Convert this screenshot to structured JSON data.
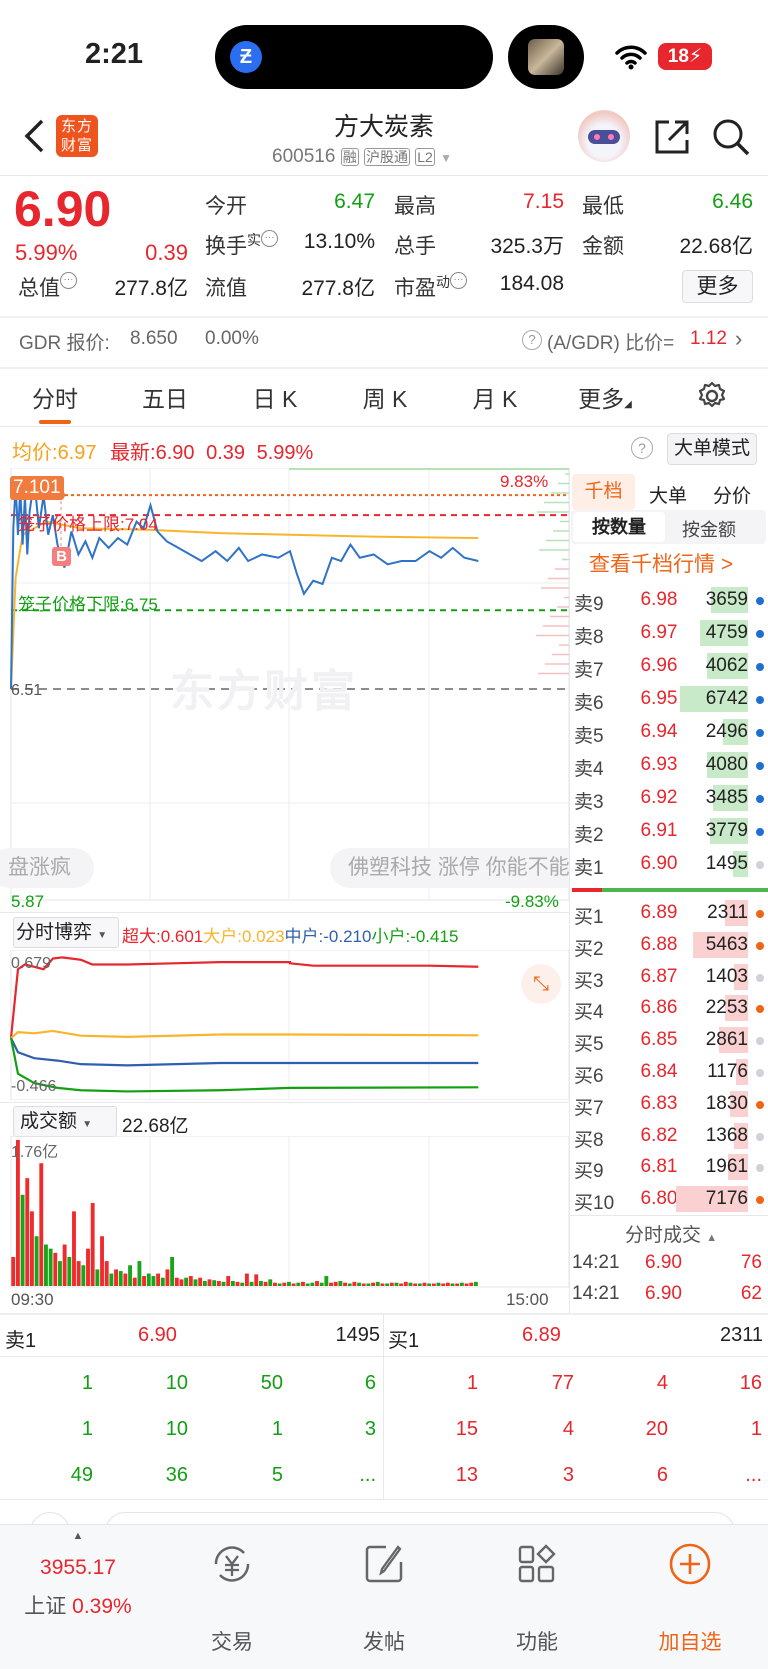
{
  "status_bar": {
    "time": "2:21",
    "battery": "18"
  },
  "header": {
    "logo": "东方财富",
    "title": "方大炭素",
    "code": "600516",
    "badges": [
      "融",
      "沪股通",
      "L2"
    ]
  },
  "quote": {
    "price": "6.90",
    "change_pct": "5.99%",
    "change": "0.39",
    "stats": [
      {
        "label": "今开",
        "value": "6.47",
        "color": "green"
      },
      {
        "label": "最高",
        "value": "7.15",
        "color": "red"
      },
      {
        "label": "最低",
        "value": "6.46",
        "color": "green"
      },
      {
        "label": "换手",
        "sup": "实",
        "value": "13.10%",
        "color": "black"
      },
      {
        "label": "总手",
        "value": "325.3万",
        "color": "black"
      },
      {
        "label": "金额",
        "value": "22.68亿",
        "color": "black"
      },
      {
        "label": "总值",
        "value": "277.8亿",
        "color": "black"
      },
      {
        "label": "流值",
        "value": "277.8亿",
        "color": "black"
      },
      {
        "label": "市盈",
        "sup": "动",
        "value": "184.08",
        "color": "black"
      }
    ],
    "more_label": "更多"
  },
  "gdr": {
    "label": "GDR 报价:",
    "price": "8.650",
    "pct": "0.00%",
    "ratio_label": "(A/GDR) 比价=",
    "ratio": "1.12"
  },
  "tabs": [
    {
      "label": "分时",
      "active": true
    },
    {
      "label": "五日"
    },
    {
      "label": "日 K"
    },
    {
      "label": "周 K"
    },
    {
      "label": "月 K"
    },
    {
      "label": "更多"
    }
  ],
  "info_line": {
    "avg_label": "均价:",
    "avg": "6.97",
    "latest_label": "最新:",
    "latest": "6.90",
    "change": "0.39",
    "pct": "5.99%",
    "mode_button": "大单模式"
  },
  "price_chart": {
    "y_top": "7.15",
    "y_mid": "6.51",
    "y_bottom": "5.87",
    "pct_top": "9.83%",
    "pct_bottom": "-9.83%",
    "marker_price": "7.101",
    "marker_letter": "B",
    "upper_limit_label": "笼子价格上限:7.04",
    "upper_limit": 7.04,
    "lower_limit_label": "笼子价格下限:6.75",
    "lower_limit": 6.75,
    "high_line": 7.101,
    "prev_close": 6.51,
    "watermark": "东方财富",
    "chips": [
      "盘涨疯",
      "佛塑科技 涨停 你能不能"
    ],
    "ylim": [
      5.87,
      7.15
    ],
    "price": [
      [
        "09:30",
        6.51
      ],
      [
        "09:31",
        7.0
      ],
      [
        "09:32",
        7.13
      ],
      [
        "09:33",
        6.98
      ],
      [
        "09:34",
        7.12
      ],
      [
        "09:35",
        6.95
      ],
      [
        "09:36",
        7.1
      ],
      [
        "09:37",
        6.92
      ],
      [
        "09:38",
        7.05
      ],
      [
        "09:40",
        7.15
      ],
      [
        "09:42",
        7.0
      ],
      [
        "09:44",
        7.1
      ],
      [
        "09:46",
        6.98
      ],
      [
        "09:48",
        7.04
      ],
      [
        "09:50",
        6.95
      ],
      [
        "09:53",
        6.88
      ],
      [
        "09:56",
        6.99
      ],
      [
        "09:59",
        6.92
      ],
      [
        "10:02",
        6.96
      ],
      [
        "10:05",
        6.91
      ],
      [
        "10:08",
        6.97
      ],
      [
        "10:12",
        6.94
      ],
      [
        "10:16",
        6.97
      ],
      [
        "10:20",
        6.95
      ],
      [
        "10:24",
        7.02
      ],
      [
        "10:27",
        7.0
      ],
      [
        "10:30",
        7.07
      ],
      [
        "10:33",
        6.99
      ],
      [
        "10:37",
        6.96
      ],
      [
        "10:42",
        6.94
      ],
      [
        "10:47",
        6.92
      ],
      [
        "10:52",
        6.9
      ],
      [
        "10:58",
        6.93
      ],
      [
        "11:03",
        6.9
      ],
      [
        "11:08",
        6.94
      ],
      [
        "11:12",
        6.9
      ],
      [
        "11:18",
        6.92
      ],
      [
        "11:25",
        6.91
      ],
      [
        "13:00",
        6.93
      ],
      [
        "13:03",
        6.86
      ],
      [
        "13:06",
        6.8
      ],
      [
        "13:10",
        6.84
      ],
      [
        "13:14",
        6.83
      ],
      [
        "13:18",
        6.91
      ],
      [
        "13:22",
        6.9
      ],
      [
        "13:26",
        6.95
      ],
      [
        "13:30",
        6.91
      ],
      [
        "13:36",
        6.92
      ],
      [
        "13:42",
        6.89
      ],
      [
        "13:48",
        6.9
      ],
      [
        "13:54",
        6.9
      ],
      [
        "14:00",
        6.93
      ],
      [
        "14:05",
        6.91
      ],
      [
        "14:10",
        6.94
      ],
      [
        "14:15",
        6.91
      ],
      [
        "14:21",
        6.9
      ]
    ],
    "avg": [
      [
        "09:30",
        6.51
      ],
      [
        "09:32",
        6.85
      ],
      [
        "09:35",
        6.98
      ],
      [
        "09:45",
        7.02
      ],
      [
        "10:00",
        7.0
      ],
      [
        "10:30",
        6.995
      ],
      [
        "11:00",
        6.985
      ],
      [
        "13:00",
        6.98
      ],
      [
        "13:30",
        6.975
      ],
      [
        "14:21",
        6.97
      ]
    ]
  },
  "order_book": {
    "tabs": [
      "千档",
      "大单",
      "分价"
    ],
    "sub_tabs": [
      "按数量",
      "按金额"
    ],
    "link": "查看千档行情 >",
    "sells": [
      {
        "k": "卖9",
        "p": "6.98",
        "q": "3659",
        "dot": "#1f6fd1"
      },
      {
        "k": "卖8",
        "p": "6.97",
        "q": "4759",
        "dot": "#1f6fd1"
      },
      {
        "k": "卖7",
        "p": "6.96",
        "q": "4062",
        "dot": "#1f6fd1"
      },
      {
        "k": "卖6",
        "p": "6.95",
        "q": "6742",
        "dot": "#1f6fd1"
      },
      {
        "k": "卖5",
        "p": "6.94",
        "q": "2496",
        "dot": "#1f6fd1"
      },
      {
        "k": "卖4",
        "p": "6.93",
        "q": "4080",
        "dot": "#1f6fd1"
      },
      {
        "k": "卖3",
        "p": "6.92",
        "q": "3485",
        "dot": "#1f6fd1"
      },
      {
        "k": "卖2",
        "p": "6.91",
        "q": "3779",
        "dot": "#1f6fd1"
      },
      {
        "k": "卖1",
        "p": "6.90",
        "q": "1495",
        "dot": "#cfd2d8"
      }
    ],
    "buys": [
      {
        "k": "买1",
        "p": "6.89",
        "q": "2311",
        "dot": "#f06418"
      },
      {
        "k": "买2",
        "p": "6.88",
        "q": "5463",
        "dot": "#f06418"
      },
      {
        "k": "买3",
        "p": "6.87",
        "q": "1403",
        "dot": "#cfd2d8"
      },
      {
        "k": "买4",
        "p": "6.86",
        "q": "2253",
        "dot": "#f06418"
      },
      {
        "k": "买5",
        "p": "6.85",
        "q": "2861",
        "dot": "#cfd2d8"
      },
      {
        "k": "买6",
        "p": "6.84",
        "q": "1176",
        "dot": "#cfd2d8"
      },
      {
        "k": "买7",
        "p": "6.83",
        "q": "1830",
        "dot": "#f06418"
      },
      {
        "k": "买8",
        "p": "6.82",
        "q": "1368",
        "dot": "#cfd2d8"
      },
      {
        "k": "买9",
        "p": "6.81",
        "q": "1961",
        "dot": "#cfd2d8"
      },
      {
        "k": "买10",
        "p": "6.80",
        "q": "7176",
        "dot": "#f06418"
      }
    ],
    "ticks_header": "分时成交",
    "ticks": [
      {
        "t": "14:21",
        "p": "6.90",
        "v": "76"
      },
      {
        "t": "14:21",
        "p": "6.90",
        "v": "62"
      }
    ]
  },
  "game": {
    "selector": "分时博弈",
    "legend": [
      {
        "label": "超大:0.601",
        "color": "#e8262d"
      },
      {
        "label": "大户:0.023",
        "color": "#f7b52c"
      },
      {
        "label": "中户:-0.210",
        "color": "#2f5fae"
      },
      {
        "label": "小户:-0.415",
        "color": "#12a012"
      }
    ],
    "y_top": "0.679",
    "y_bottom": "-0.466",
    "ylim": [
      -0.48,
      0.7
    ],
    "series": [
      {
        "color": "#e8262d",
        "points": [
          [
            "09:30",
            0.0
          ],
          [
            "09:33",
            0.58
          ],
          [
            "09:36",
            0.62
          ],
          [
            "09:40",
            0.6
          ],
          [
            "09:44",
            0.58
          ],
          [
            "09:48",
            0.67
          ],
          [
            "09:52",
            0.68
          ],
          [
            "10:00",
            0.66
          ],
          [
            "10:05",
            0.62
          ],
          [
            "10:20",
            0.62
          ],
          [
            "10:40",
            0.63
          ],
          [
            "11:00",
            0.64
          ],
          [
            "11:30",
            0.64
          ],
          [
            "13:00",
            0.63
          ],
          [
            "13:10",
            0.61
          ],
          [
            "13:30",
            0.61
          ],
          [
            "14:00",
            0.61
          ],
          [
            "14:21",
            0.601
          ]
        ]
      },
      {
        "color": "#f7b52c",
        "points": [
          [
            "09:30",
            0.0
          ],
          [
            "09:33",
            0.05
          ],
          [
            "09:40",
            0.04
          ],
          [
            "09:48",
            0.06
          ],
          [
            "10:00",
            0.02
          ],
          [
            "10:20",
            0.01
          ],
          [
            "11:00",
            0.03
          ],
          [
            "13:00",
            0.03
          ],
          [
            "14:21",
            0.023
          ]
        ]
      },
      {
        "color": "#2f5fae",
        "points": [
          [
            "09:30",
            0.0
          ],
          [
            "09:33",
            -0.12
          ],
          [
            "09:40",
            -0.17
          ],
          [
            "09:50",
            -0.19
          ],
          [
            "10:00",
            -0.22
          ],
          [
            "10:20",
            -0.23
          ],
          [
            "11:00",
            -0.21
          ],
          [
            "13:00",
            -0.21
          ],
          [
            "14:21",
            -0.21
          ]
        ]
      },
      {
        "color": "#12a012",
        "points": [
          [
            "09:30",
            0.0
          ],
          [
            "09:33",
            -0.3
          ],
          [
            "09:40",
            -0.38
          ],
          [
            "09:50",
            -0.42
          ],
          [
            "10:00",
            -0.44
          ],
          [
            "10:20",
            -0.45
          ],
          [
            "11:00",
            -0.44
          ],
          [
            "13:00",
            -0.42
          ],
          [
            "14:21",
            -0.415
          ]
        ]
      }
    ]
  },
  "volume": {
    "selector": "成交额",
    "total": "22.68亿",
    "y_max_label": "1.76亿",
    "ymax": 1.76,
    "x_start": "09:30",
    "x_end": "15:00",
    "values": [
      0.35,
      1.76,
      -1.1,
      1.3,
      0.9,
      -0.6,
      1.48,
      -0.5,
      -0.45,
      0.4,
      -0.3,
      0.5,
      -0.35,
      0.9,
      0.3,
      -0.25,
      0.45,
      1.0,
      -0.2,
      0.6,
      0.3,
      -0.15,
      0.2,
      -0.18,
      0.15,
      -0.25,
      0.1,
      -0.3,
      0.12,
      -0.15,
      -0.12,
      0.15,
      -0.1,
      0.2,
      -0.35,
      0.1,
      0.08,
      -0.1,
      0.12,
      -0.08,
      0.1,
      -0.06,
      0.08,
      -0.07,
      0.06,
      -0.05,
      0.12,
      -0.06,
      0.05,
      -0.04,
      0.15,
      -0.05,
      0.14,
      -0.06,
      0.05,
      -0.08,
      0.04,
      -0.03,
      0.04,
      -0.05,
      0.03,
      -0.04,
      0.05,
      -0.03,
      -0.04,
      0.06,
      -0.04,
      -0.12,
      0.04,
      0.05,
      -0.06,
      0.04,
      -0.03,
      0.05,
      -0.04,
      0.03,
      -0.03,
      0.04,
      -0.05,
      0.03,
      -0.03,
      0.04,
      -0.04,
      0.03,
      0.05,
      -0.04,
      0.03,
      -0.03,
      0.04,
      -0.03,
      0.03,
      -0.04,
      0.03,
      0.04,
      -0.03,
      0.03,
      -0.04,
      0.03,
      0.04,
      -0.05
    ]
  },
  "bottom_table": {
    "sell": {
      "k": "卖1",
      "p": "6.90",
      "q": "1495"
    },
    "buy": {
      "k": "买1",
      "p": "6.89",
      "q": "2311"
    },
    "left_rows": [
      [
        "1",
        "10",
        "50",
        "6"
      ],
      [
        "1",
        "10",
        "1",
        "3"
      ],
      [
        "49",
        "36",
        "5",
        "..."
      ]
    ],
    "right_rows": [
      [
        "1",
        "77",
        "4",
        "16"
      ],
      [
        "15",
        "4",
        "20",
        "1"
      ],
      [
        "13",
        "3",
        "6",
        "..."
      ]
    ]
  },
  "bottom_nav": {
    "index_value": "3955.17",
    "index_name": "上证",
    "index_pct": "0.39%",
    "items": [
      {
        "label": "交易",
        "icon": "yen-exchange-icon"
      },
      {
        "label": "发帖",
        "icon": "compose-icon"
      },
      {
        "label": "功能",
        "icon": "apps-icon"
      },
      {
        "label": "加自选",
        "icon": "add-circle-icon"
      }
    ]
  }
}
